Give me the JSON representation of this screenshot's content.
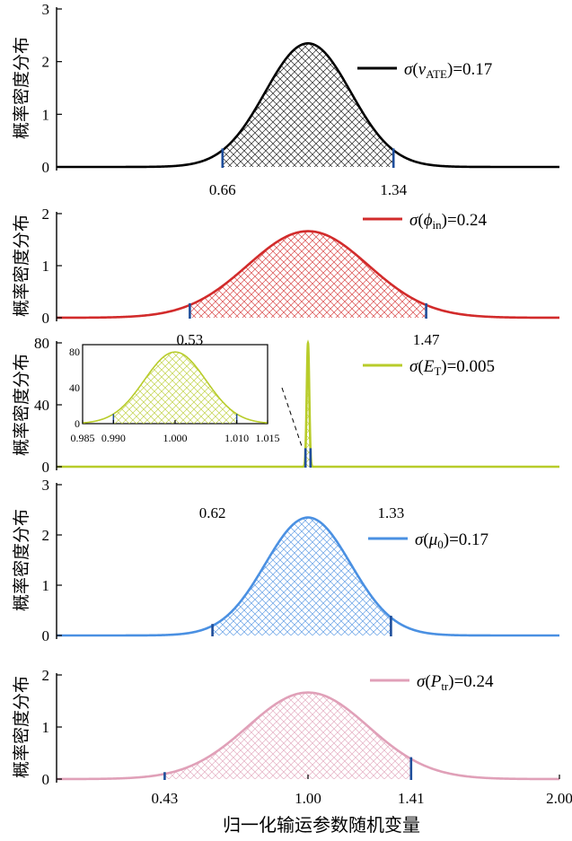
{
  "figure": {
    "xlabel": "归一化输运参数随机变量",
    "ylabel": "概率密度分布"
  },
  "chart_data": [
    {
      "id": "v_ate",
      "type": "area",
      "title": "",
      "ylabel": "概率密度分布",
      "color": "#000000",
      "legend": {
        "symbol": "σ",
        "open": "(",
        "var": "v",
        "sub": "ATE",
        "close": ")",
        "value": "=0.17"
      },
      "distribution": {
        "mean": 1.0,
        "sigma": 0.17
      },
      "bounds": [
        0.66,
        1.34
      ],
      "bound_labels": [
        "0.66",
        "1.34"
      ],
      "xlim": [
        0.0,
        2.0
      ],
      "ylim": [
        0,
        3
      ],
      "yticks": [
        0,
        1,
        2,
        3
      ],
      "yticklabels": [
        "0",
        "1",
        "2",
        "3"
      ]
    },
    {
      "id": "phi_in",
      "type": "area",
      "title": "",
      "ylabel": "概率密度分布",
      "color": "#d22b2b",
      "legend": {
        "symbol": "σ",
        "open": "(",
        "var": "ϕ",
        "sub": "in",
        "close": ")",
        "value": "=0.24"
      },
      "distribution": {
        "mean": 1.0,
        "sigma": 0.24
      },
      "bounds": [
        0.53,
        1.47
      ],
      "bound_labels": [
        "0.53",
        "1.47"
      ],
      "xlim": [
        0.0,
        2.0
      ],
      "ylim": [
        0,
        2
      ],
      "yticks": [
        0,
        1,
        2
      ],
      "yticklabels": [
        "0",
        "1",
        "2"
      ]
    },
    {
      "id": "e_t",
      "type": "area",
      "title": "",
      "ylabel": "概率密度分布",
      "color": "#b8cc2a",
      "legend": {
        "symbol": "σ",
        "open": "(",
        "var": "E",
        "sub": "T",
        "close": ")",
        "value": "=0.005"
      },
      "distribution": {
        "mean": 1.0,
        "sigma": 0.005
      },
      "bounds": [
        0.99,
        1.01
      ],
      "bound_labels": [
        "0.99",
        "1.01"
      ],
      "xlim": [
        0.0,
        2.0
      ],
      "ylim": [
        0,
        80
      ],
      "yticks": [
        0,
        40,
        80
      ],
      "yticklabels": [
        "0",
        "40",
        "80"
      ],
      "inset": {
        "xlim": [
          0.985,
          1.015
        ],
        "ylim": [
          0,
          80
        ],
        "xticks": [
          0.985,
          0.99,
          1.0,
          1.01,
          1.015
        ],
        "xticklabels": [
          "0.985",
          "0.990",
          "1.000",
          "1.010",
          "1.015"
        ],
        "yticks": [
          0,
          40,
          80
        ],
        "yticklabels": [
          "0",
          "40",
          "80"
        ]
      }
    },
    {
      "id": "mu_0",
      "type": "area",
      "title": "",
      "ylabel": "概率密度分布",
      "color": "#4a90e2",
      "legend": {
        "symbol": "σ",
        "open": "(",
        "var": "μ",
        "sub": "0",
        "close": ")",
        "value": "=0.17"
      },
      "distribution": {
        "mean": 1.0,
        "sigma": 0.17
      },
      "bounds": [
        0.62,
        1.33
      ],
      "bound_labels": [
        "0.62",
        "1.33"
      ],
      "xlim": [
        0.0,
        2.0
      ],
      "ylim": [
        0,
        3
      ],
      "yticks": [
        0,
        1,
        2,
        3
      ],
      "yticklabels": [
        "0",
        "1",
        "2",
        "3"
      ]
    },
    {
      "id": "p_tr",
      "type": "area",
      "title": "",
      "ylabel": "概率密度分布",
      "color": "#e0a0b8",
      "legend": {
        "symbol": "σ",
        "open": "(",
        "var": "P",
        "sub": "tr",
        "close": ")",
        "value": "=0.24"
      },
      "distribution": {
        "mean": 1.0,
        "sigma": 0.24
      },
      "bounds": [
        0.43,
        1.41
      ],
      "bound_labels": [
        "0.43",
        "1.41"
      ],
      "xlim": [
        0.0,
        2.0
      ],
      "ylim": [
        0,
        2
      ],
      "yticks": [
        0,
        1,
        2
      ],
      "yticklabels": [
        "0",
        "1",
        "2"
      ],
      "xticks": [
        1.0,
        2.0
      ],
      "xticklabels": [
        "1.00",
        "2.00"
      ]
    }
  ]
}
